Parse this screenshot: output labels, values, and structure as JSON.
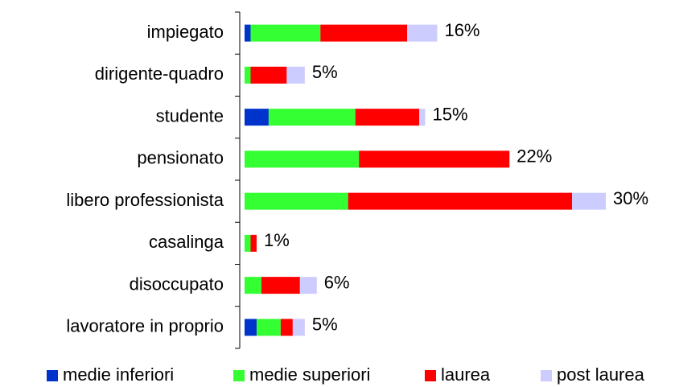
{
  "chart_data": {
    "type": "stacked-bar",
    "orientation": "horizontal",
    "categories": [
      "impiegato",
      "dirigente-quadro",
      "studente",
      "pensionato",
      "libero professionista",
      "casalinga",
      "disoccupato",
      "lavoratore in proprio"
    ],
    "series": [
      {
        "name": "medie inferiori",
        "color": "#0033cc",
        "values": [
          0.5,
          0,
          2,
          0,
          0,
          0,
          0,
          1
        ]
      },
      {
        "name": "medie superiori",
        "color": "#33ff33",
        "values": [
          5.8,
          0.5,
          7.2,
          9.5,
          8.6,
          0.5,
          1.4,
          2
        ]
      },
      {
        "name": "laurea",
        "color": "#ff0000",
        "values": [
          7.2,
          3,
          5.3,
          12.5,
          18.6,
          0.5,
          3.2,
          1
        ]
      },
      {
        "name": "post laurea",
        "color": "#ccccff",
        "values": [
          2.5,
          1.5,
          0.5,
          0,
          2.8,
          0,
          1.4,
          1
        ]
      }
    ],
    "totals": [
      16,
      5,
      15,
      22,
      30,
      1,
      6,
      5
    ],
    "total_labels": [
      "16%",
      "5%",
      "15%",
      "22%",
      "30%",
      "1%",
      "6%",
      "5%"
    ],
    "xlim": [
      0,
      30
    ]
  }
}
